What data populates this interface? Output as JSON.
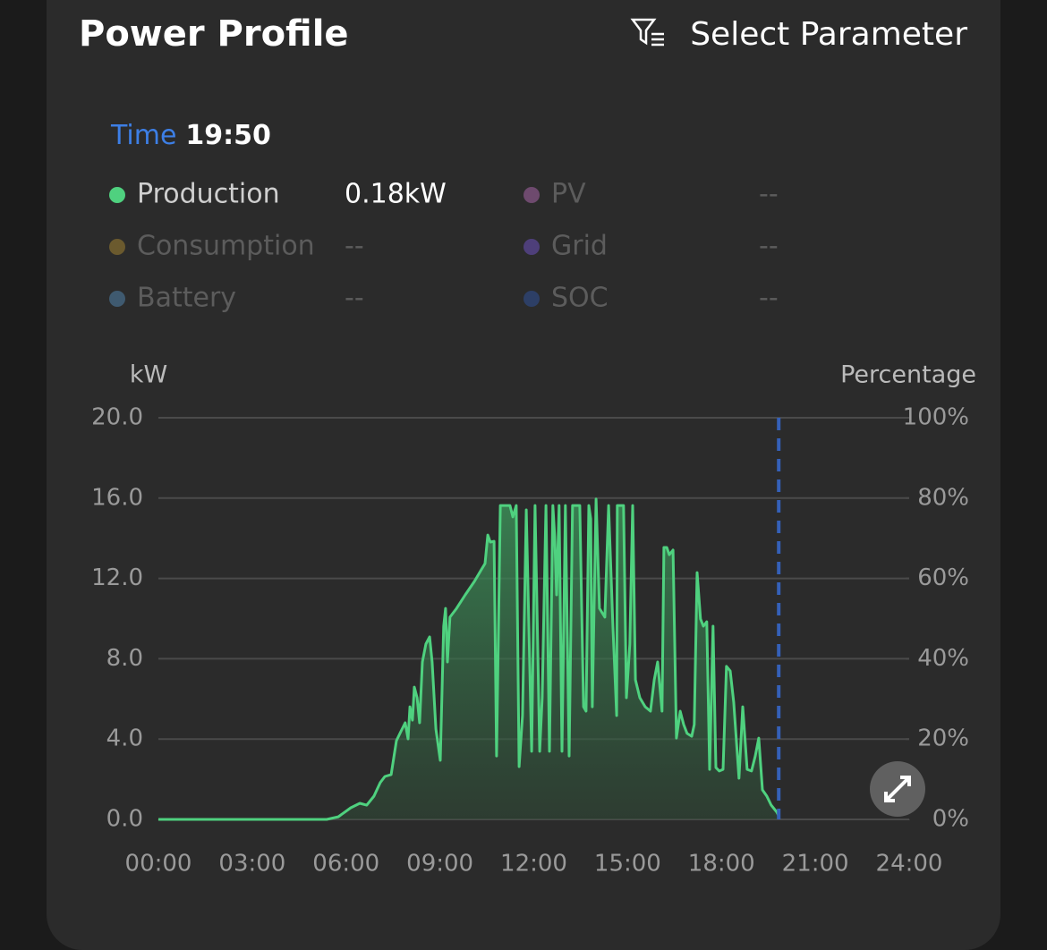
{
  "header": {
    "title": "Power Profile",
    "action": "Select Parameter"
  },
  "tooltip": {
    "label": "Time",
    "time": "19:50"
  },
  "legend": [
    {
      "name": "PV",
      "color": "#6e4a6e",
      "value": "--"
    },
    {
      "name": "Consumption",
      "color": "#6b5a2e",
      "value": "--"
    },
    {
      "name": "Grid",
      "color": "#4e3f7a",
      "value": "--"
    },
    {
      "name": "Battery",
      "color": "#3f5a70",
      "value": "--"
    },
    {
      "name": "SOC",
      "color": "#2d3f66",
      "value": "--"
    }
  ],
  "chart_data": {
    "type": "area",
    "y_label": "kW",
    "y2_label": "Percentage",
    "x": [
      0,
      5.38,
      5.75,
      6.15,
      6.44,
      6.66,
      6.89,
      7.09,
      7.24,
      7.44,
      7.61,
      7.75,
      7.89,
      7.98,
      8.04,
      8.12,
      8.18,
      8.27,
      8.35,
      8.44,
      8.55,
      8.67,
      8.75,
      8.87,
      9.01,
      9.12,
      9.18,
      9.24,
      9.32,
      9.53,
      9.81,
      10.1,
      10.3,
      10.44,
      10.53,
      10.61,
      10.73,
      10.81,
      10.93,
      11.24,
      11.33,
      11.44,
      11.53,
      11.64,
      11.76,
      11.93,
      12.04,
      12.19,
      12.27,
      12.39,
      12.5,
      12.61,
      12.67,
      12.73,
      12.81,
      12.9,
      13.01,
      13.13,
      13.24,
      13.47,
      13.53,
      13.59,
      13.67,
      13.76,
      13.82,
      13.87,
      13.99,
      14.1,
      14.27,
      14.39,
      14.53,
      14.65,
      14.67,
      14.87,
      14.96,
      15.07,
      15.16,
      15.25,
      15.39,
      15.56,
      15.73,
      15.85,
      15.96,
      16.1,
      16.16,
      16.25,
      16.33,
      16.45,
      16.56,
      16.68,
      16.79,
      16.9,
      17.05,
      17.13,
      17.22,
      17.33,
      17.42,
      17.53,
      17.62,
      17.73,
      17.82,
      17.93,
      18.05,
      18.16,
      18.28,
      18.39,
      18.56,
      18.68,
      18.82,
      18.96,
      19.08,
      19.19,
      19.31,
      19.45,
      19.59,
      19.77,
      19.83
    ],
    "series": [
      {
        "name": "Production",
        "color": "#4fd17f",
        "current": "0.18kW",
        "values": [
          0,
          0,
          0.13,
          0.58,
          0.8,
          0.71,
          1.16,
          1.83,
          2.14,
          2.23,
          3.92,
          4.37,
          4.81,
          4.01,
          5.61,
          4.94,
          6.59,
          6.06,
          4.81,
          7.84,
          8.73,
          9.09,
          7.84,
          4.5,
          2.94,
          9.62,
          10.51,
          7.84,
          10.07,
          10.51,
          11.18,
          11.85,
          12.38,
          12.74,
          14.16,
          13.81,
          13.85,
          3.16,
          15.63,
          15.63,
          15.06,
          15.63,
          2.63,
          5.17,
          15.41,
          3.39,
          15.63,
          3.39,
          6.06,
          15.63,
          3.39,
          15.63,
          14.08,
          11.18,
          15.63,
          3.39,
          15.63,
          3.16,
          15.63,
          15.63,
          10.51,
          5.61,
          5.39,
          15.63,
          14.97,
          5.61,
          15.95,
          10.51,
          10.07,
          15.63,
          9.62,
          5.17,
          15.63,
          15.63,
          6.06,
          8.73,
          15.63,
          6.95,
          6.06,
          5.61,
          5.39,
          6.95,
          7.84,
          5.39,
          13.54,
          13.54,
          13.18,
          13.41,
          4.05,
          5.39,
          4.72,
          4.28,
          4.14,
          4.72,
          12.29,
          9.98,
          9.62,
          9.84,
          2.49,
          9.62,
          2.58,
          2.41,
          2.49,
          7.62,
          7.39,
          5.84,
          2.05,
          5.61,
          2.49,
          2.41,
          3.16,
          4.05,
          1.47,
          1.16,
          0.71,
          0.36,
          0.18
        ]
      }
    ],
    "xlim": [
      0,
      24
    ],
    "xticks": [
      {
        "value": 0,
        "label": "00:00"
      },
      {
        "value": 3,
        "label": "03:00"
      },
      {
        "value": 6,
        "label": "06:00"
      },
      {
        "value": 9,
        "label": "09:00"
      },
      {
        "value": 12,
        "label": "12:00"
      },
      {
        "value": 15,
        "label": "15:00"
      },
      {
        "value": 18,
        "label": "18:00"
      },
      {
        "value": 21,
        "label": "21:00"
      },
      {
        "value": 24,
        "label": "24:00"
      }
    ],
    "ylim": [
      0,
      20
    ],
    "yticks": [
      {
        "value": 0,
        "label": "0.0"
      },
      {
        "value": 4,
        "label": "4.0"
      },
      {
        "value": 8,
        "label": "8.0"
      },
      {
        "value": 12,
        "label": "12.0"
      },
      {
        "value": 16,
        "label": "16.0"
      },
      {
        "value": 20,
        "label": "20.0"
      }
    ],
    "y2lim": [
      0,
      100
    ],
    "y2ticks": [
      {
        "value": 0,
        "label": "0%"
      },
      {
        "value": 20,
        "label": "20%"
      },
      {
        "value": 40,
        "label": "40%"
      },
      {
        "value": 60,
        "label": "60%"
      },
      {
        "value": 80,
        "label": "80%"
      },
      {
        "value": 100,
        "label": "100%"
      }
    ],
    "grid": true,
    "cursor_x": 19.83
  }
}
